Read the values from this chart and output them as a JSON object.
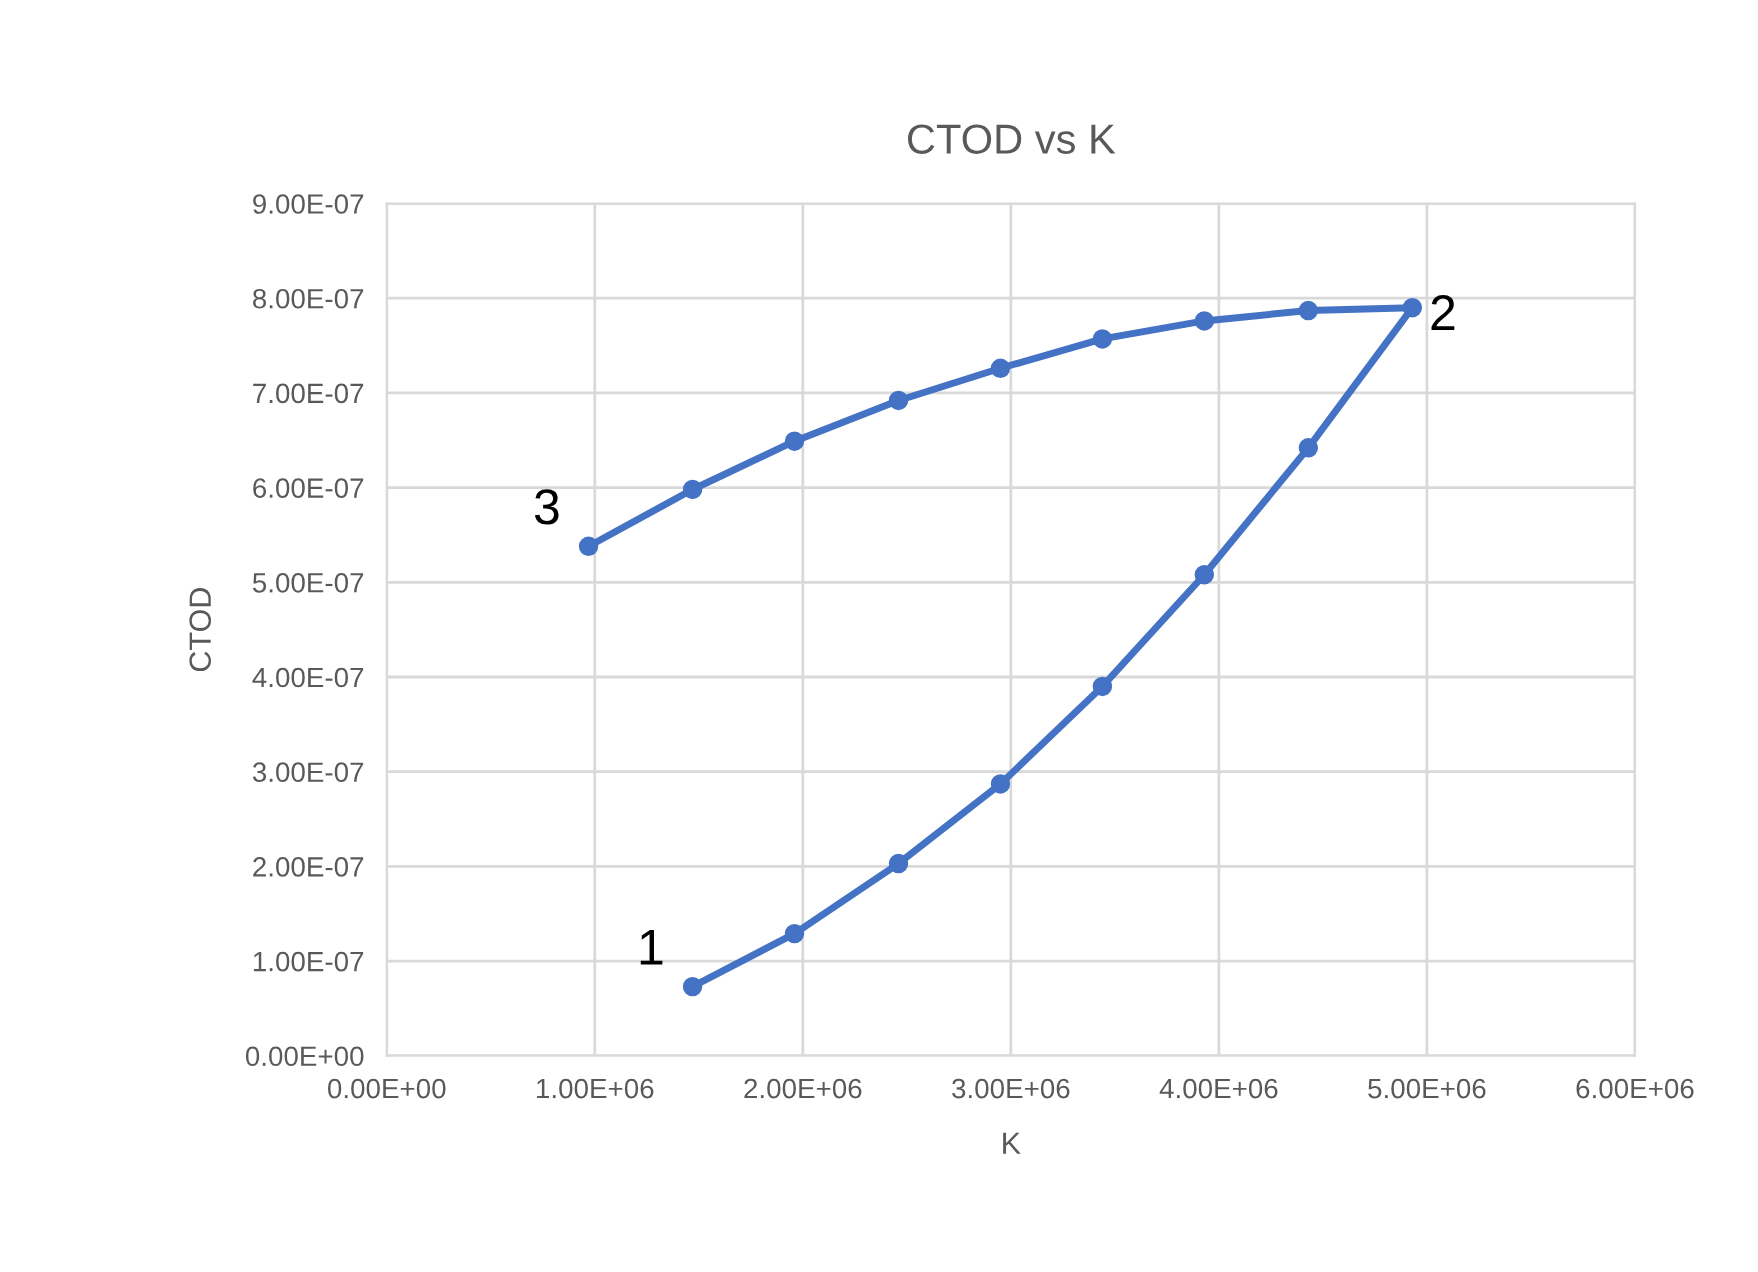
{
  "chart_data": {
    "type": "line",
    "title": "CTOD vs K",
    "xlabel": "K",
    "ylabel": "CTOD",
    "series": [
      {
        "color": "#4472c4",
        "x": [
          1470000.0,
          1960000.0,
          2460000.0,
          2950000.0,
          3440000.0,
          3930000.0,
          4430000.0,
          4930000.0,
          4430000.0,
          3930000.0,
          3440000.0,
          2950000.0,
          2460000.0,
          1960000.0,
          1470000.0,
          970000.0
        ],
        "values": [
          7.3e-08,
          1.29e-07,
          2.03e-07,
          2.87e-07,
          3.9e-07,
          5.08e-07,
          6.42e-07,
          7.9e-07,
          7.87e-07,
          7.76e-07,
          7.57e-07,
          7.26e-07,
          6.92e-07,
          6.49e-07,
          5.98e-07,
          5.38e-07
        ]
      }
    ],
    "xlim": [
      0,
      6000000.0
    ],
    "xticks": [
      {
        "value": 0,
        "label": "0.00E+00"
      },
      {
        "value": 1000000.0,
        "label": "1.00E+06"
      },
      {
        "value": 2000000.0,
        "label": "2.00E+06"
      },
      {
        "value": 3000000.0,
        "label": "3.00E+06"
      },
      {
        "value": 4000000.0,
        "label": "4.00E+06"
      },
      {
        "value": 5000000.0,
        "label": "5.00E+06"
      },
      {
        "value": 6000000.0,
        "label": "6.00E+06"
      }
    ],
    "ylim": [
      0,
      9e-07
    ],
    "yticks": [
      {
        "value": 0,
        "label": "0.00E+00"
      },
      {
        "value": 1e-07,
        "label": "1.00E-07"
      },
      {
        "value": 2e-07,
        "label": "2.00E-07"
      },
      {
        "value": 3e-07,
        "label": "3.00E-07"
      },
      {
        "value": 4e-07,
        "label": "4.00E-07"
      },
      {
        "value": 5e-07,
        "label": "5.00E-07"
      },
      {
        "value": 6e-07,
        "label": "6.00E-07"
      },
      {
        "value": 7e-07,
        "label": "7.00E-07"
      },
      {
        "value": 8e-07,
        "label": "8.00E-07"
      },
      {
        "value": 9e-07,
        "label": "9.00E-07"
      }
    ],
    "grid": true,
    "marker": "circle",
    "line_style": "solid",
    "annotations": [
      {
        "text": "1",
        "x": 1470000.0,
        "y": 7.3e-08
      },
      {
        "text": "2",
        "x": 4930000.0,
        "y": 7.9e-07
      },
      {
        "text": "3",
        "x": 970000.0,
        "y": 5.38e-07
      }
    ]
  }
}
